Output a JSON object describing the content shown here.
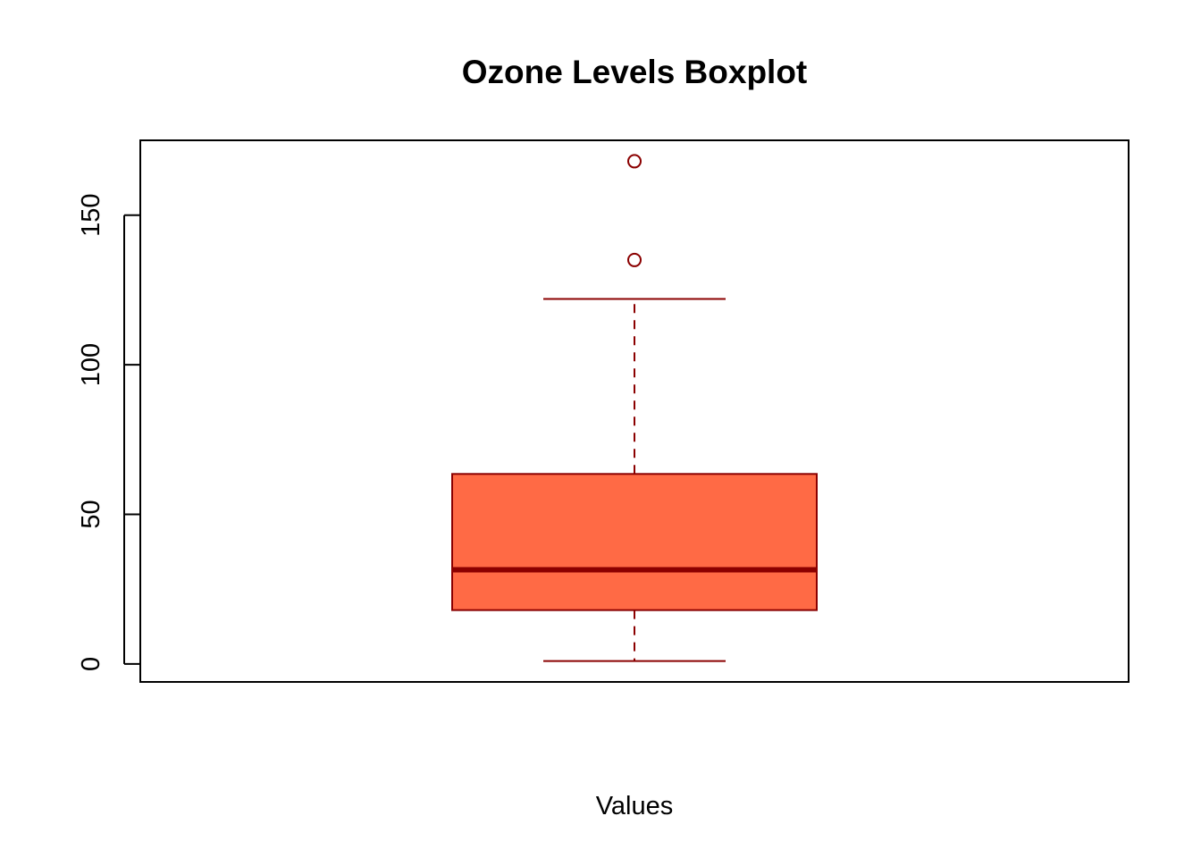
{
  "chart_data": {
    "type": "boxplot",
    "title": "Ozone Levels Boxplot",
    "xlabel": "Values",
    "ylabel": "",
    "ylim": [
      -6,
      175
    ],
    "yticks": [
      0,
      50,
      100,
      150
    ],
    "grid": false,
    "legend": "none",
    "series": [
      {
        "whisker_low": 1,
        "q1": 18,
        "median": 31.5,
        "q3": 63.5,
        "whisker_high": 122,
        "outliers": [
          135,
          168
        ]
      }
    ],
    "colors": {
      "box_fill": "#FF6A45",
      "box_border": "#8B0000",
      "median_line": "#8B0000",
      "whisker": "#8B0000",
      "outlier": "#8B0000",
      "axis": "#000000"
    }
  }
}
